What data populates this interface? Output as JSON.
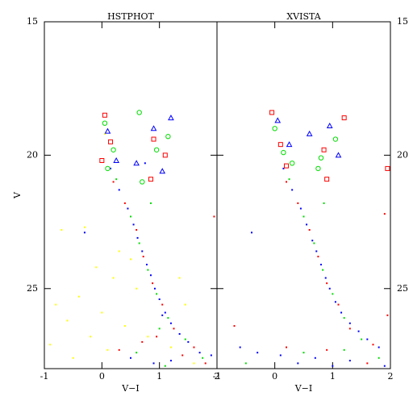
{
  "chart_data": [
    {
      "type": "scatter",
      "title": "HSTPHOT",
      "xlabel": "V−I",
      "ylabel": "V",
      "xlim": [
        -1,
        2
      ],
      "ylim": [
        28,
        15
      ],
      "xticks": [
        -1,
        0,
        1,
        2
      ],
      "yticks": [
        15,
        20,
        25
      ],
      "ytick_side": "left",
      "series": [
        {
          "color": "#0000ff",
          "marker": "dot",
          "x": [
            0.15,
            0.3,
            0.45,
            0.55,
            0.62,
            0.7,
            0.78,
            0.85,
            0.92,
            1.0,
            1.1,
            1.2,
            1.35,
            1.5,
            1.7,
            1.9,
            0.9,
            0.5,
            1.2,
            -0.3,
            0.75,
            1.05
          ],
          "values": [
            20.5,
            21.3,
            22.0,
            22.6,
            23.1,
            23.6,
            24.1,
            24.5,
            25.0,
            25.4,
            25.9,
            26.3,
            26.7,
            27.0,
            27.4,
            27.5,
            27.8,
            27.6,
            27.7,
            22.9,
            20.3,
            26.0
          ]
        },
        {
          "color": "#ff0000",
          "marker": "dot",
          "x": [
            0.2,
            0.4,
            0.6,
            0.72,
            0.88,
            1.05,
            1.25,
            1.6,
            1.8,
            0.3,
            1.95,
            0.95,
            1.4,
            0.7
          ],
          "values": [
            21.0,
            21.8,
            22.8,
            23.8,
            24.8,
            25.6,
            26.5,
            27.2,
            27.8,
            27.3,
            22.3,
            26.8,
            27.5,
            27.0
          ]
        },
        {
          "color": "#00dd00",
          "marker": "dot",
          "x": [
            0.25,
            0.5,
            0.65,
            0.8,
            0.95,
            1.15,
            1.45,
            1.75,
            0.6,
            1.1,
            1.0,
            0.85
          ],
          "values": [
            20.9,
            22.3,
            23.3,
            24.3,
            25.2,
            26.1,
            26.9,
            27.6,
            27.4,
            27.9,
            26.5,
            21.8
          ]
        },
        {
          "color": "#ffff00",
          "marker": "dot",
          "x": [
            -0.8,
            -0.6,
            -0.4,
            -0.2,
            0.0,
            0.2,
            0.4,
            -0.9,
            -0.5,
            0.1,
            0.6,
            -0.7,
            -0.3,
            0.3,
            0.8,
            1.2,
            -0.1,
            0.5,
            1.6,
            1.45,
            0.05,
            1.35
          ],
          "values": [
            25.6,
            26.2,
            25.3,
            26.8,
            25.9,
            24.6,
            26.4,
            27.1,
            27.6,
            27.3,
            25.0,
            22.8,
            22.7,
            23.6,
            26.8,
            27.2,
            24.2,
            23.9,
            27.8,
            25.6,
            19.2,
            24.6
          ]
        },
        {
          "color": "#ff0000",
          "marker": "square",
          "x": [
            0.05,
            0.15,
            0.0,
            0.9,
            1.1,
            0.85
          ],
          "values": [
            18.5,
            19.5,
            20.2,
            19.4,
            20.0,
            20.9
          ]
        },
        {
          "color": "#00dd00",
          "marker": "circle",
          "x": [
            0.05,
            0.2,
            0.1,
            0.65,
            0.95,
            1.15,
            0.7
          ],
          "values": [
            18.8,
            19.8,
            20.5,
            18.4,
            19.8,
            19.3,
            21.0
          ]
        },
        {
          "color": "#0000ff",
          "marker": "triangle",
          "x": [
            0.1,
            0.25,
            0.9,
            1.2,
            1.05,
            0.6
          ],
          "values": [
            19.1,
            20.2,
            19.0,
            18.6,
            20.6,
            20.3
          ]
        }
      ]
    },
    {
      "type": "scatter",
      "title": "XVISTA",
      "xlabel": "V−I",
      "xlim": [
        -1,
        2
      ],
      "ylim": [
        28,
        15
      ],
      "xticks": [
        -1,
        0,
        1,
        2
      ],
      "yticks": [
        15,
        20,
        25
      ],
      "ytick_side": "right",
      "series": [
        {
          "color": "#0000ff",
          "marker": "dot",
          "x": [
            0.15,
            0.3,
            0.45,
            0.55,
            0.65,
            0.72,
            0.8,
            0.88,
            0.95,
            1.05,
            1.15,
            1.3,
            1.45,
            1.6,
            1.8,
            0.1,
            0.4,
            0.7,
            1.0,
            1.3,
            1.9,
            -0.3,
            -0.6,
            -0.4
          ],
          "values": [
            20.5,
            21.3,
            22.0,
            22.6,
            23.2,
            23.6,
            24.1,
            24.6,
            25.0,
            25.5,
            25.9,
            26.3,
            26.6,
            26.9,
            27.2,
            27.5,
            27.8,
            27.6,
            27.9,
            27.7,
            27.9,
            27.4,
            27.2,
            22.9
          ]
        },
        {
          "color": "#ff0000",
          "marker": "dot",
          "x": [
            0.2,
            0.4,
            0.6,
            0.75,
            0.9,
            1.1,
            1.3,
            1.7,
            -0.7,
            0.2,
            0.9,
            1.6,
            1.9,
            1.95
          ],
          "values": [
            21.0,
            21.8,
            22.8,
            23.8,
            24.8,
            25.6,
            26.5,
            27.1,
            26.4,
            27.2,
            27.3,
            27.8,
            22.2,
            26.0
          ]
        },
        {
          "color": "#00dd00",
          "marker": "dot",
          "x": [
            0.25,
            0.5,
            0.68,
            0.83,
            1.0,
            1.2,
            1.5,
            -0.5,
            0.5,
            1.2,
            1.8,
            0.85
          ],
          "values": [
            20.9,
            22.3,
            23.3,
            24.3,
            25.2,
            26.1,
            26.9,
            27.8,
            27.4,
            27.3,
            27.6,
            21.8
          ]
        },
        {
          "color": "#ff0000",
          "marker": "square",
          "x": [
            -0.05,
            0.1,
            0.2,
            0.85,
            1.2,
            0.9,
            1.95
          ],
          "values": [
            18.4,
            19.6,
            20.4,
            19.8,
            18.6,
            20.9,
            20.5
          ]
        },
        {
          "color": "#00dd00",
          "marker": "circle",
          "x": [
            0.0,
            0.15,
            0.3,
            0.8,
            1.05,
            0.75
          ],
          "values": [
            19.0,
            19.9,
            20.3,
            20.1,
            19.4,
            20.5
          ]
        },
        {
          "color": "#0000ff",
          "marker": "triangle",
          "x": [
            0.05,
            0.25,
            0.95,
            1.1,
            0.6
          ],
          "values": [
            18.7,
            19.6,
            18.9,
            20.0,
            19.2
          ]
        }
      ]
    }
  ]
}
